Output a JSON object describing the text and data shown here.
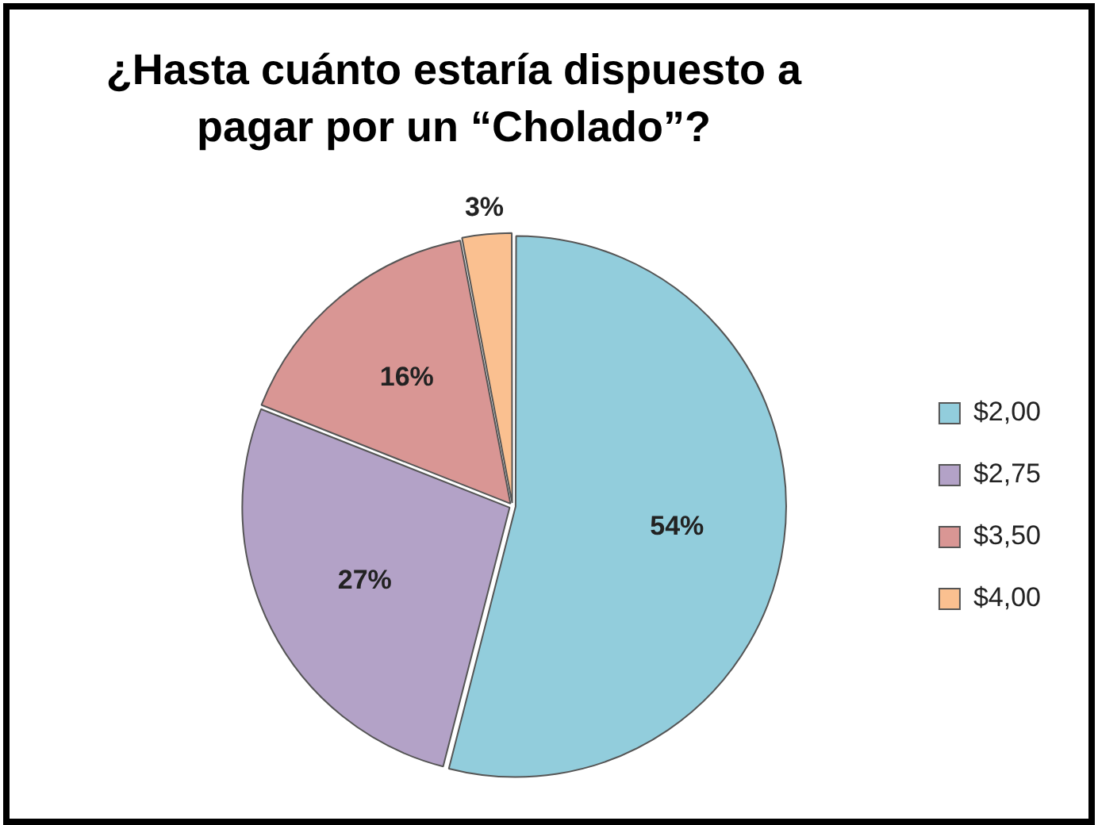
{
  "chart_data": {
    "type": "pie",
    "title": "¿Hasta cuánto estaría dispuesto a pagar por un “Cholado”?",
    "categories": [
      "$2,00",
      "$2,75",
      "$3,50",
      "$4,00"
    ],
    "values": [
      54,
      27,
      16,
      3
    ],
    "colors": [
      "#92cddc",
      "#b3a2c7",
      "#d99694",
      "#fac090"
    ],
    "value_labels": [
      "54%",
      "27%",
      "16%",
      "3%"
    ],
    "legend": "right"
  }
}
